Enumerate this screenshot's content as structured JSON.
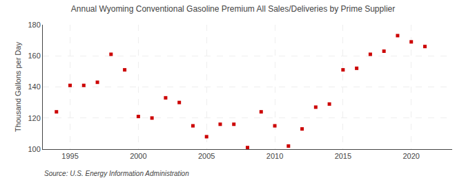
{
  "chart_data": {
    "type": "scatter",
    "title": "Annual Wyoming Conventional Gasoline Premium All Sales/Deliveries by Prime Supplier",
    "ylabel": "Thousand Gallons per Day",
    "annotations": [
      "Source: U.S. Energy Information Administration"
    ],
    "x": [
      1994,
      1995,
      1996,
      1997,
      1998,
      1999,
      2000,
      2001,
      2002,
      2003,
      2004,
      2005,
      2006,
      2007,
      2008,
      2009,
      2010,
      2011,
      2012,
      2013,
      2014,
      2015,
      2016,
      2017,
      2018,
      2019,
      2020,
      2021
    ],
    "values": [
      124,
      141,
      141,
      143,
      161,
      151,
      121,
      120,
      133,
      130,
      115,
      108,
      116,
      116,
      101,
      124,
      115,
      102,
      113,
      127,
      129,
      151,
      152,
      161,
      163,
      173,
      169,
      166
    ],
    "color": "#cc0000",
    "marker": "square",
    "xlim": [
      1993,
      2023
    ],
    "xticks": [
      1995,
      2000,
      2005,
      2010,
      2015,
      2020
    ],
    "ylim": [
      100,
      180
    ],
    "yticks": [
      100,
      120,
      140,
      160,
      180
    ],
    "grid": true
  }
}
